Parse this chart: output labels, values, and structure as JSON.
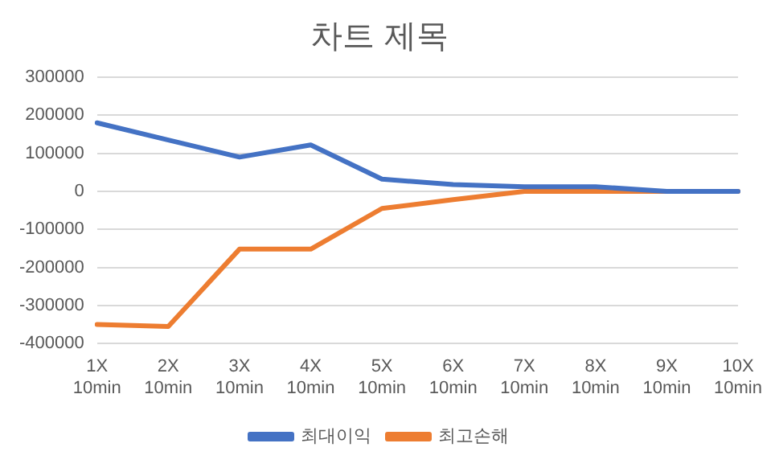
{
  "chart_data": {
    "type": "line",
    "title": "차트 제목",
    "categories": [
      "1X 10min",
      "2X 10min",
      "3X 10min",
      "4X 10min",
      "5X 10min",
      "6X 10min",
      "7X 10min",
      "8X 10min",
      "9X 10min",
      "10X 10min"
    ],
    "series": [
      {
        "name": "최대이익",
        "color": "#4472c4",
        "values": [
          180000,
          135000,
          90000,
          122000,
          32000,
          18000,
          12000,
          12000,
          0,
          0
        ]
      },
      {
        "name": "최고손해",
        "color": "#ed7d31",
        "values": [
          -350000,
          -355000,
          -152000,
          -152000,
          -45000,
          -22000,
          0,
          0,
          0,
          0
        ]
      }
    ],
    "ylim": [
      -400000,
      300000
    ],
    "yticks": [
      -400000,
      -300000,
      -200000,
      -100000,
      0,
      100000,
      200000,
      300000
    ],
    "grid": "y",
    "legend": "bottom",
    "marker": "none",
    "line_style": "solid"
  }
}
